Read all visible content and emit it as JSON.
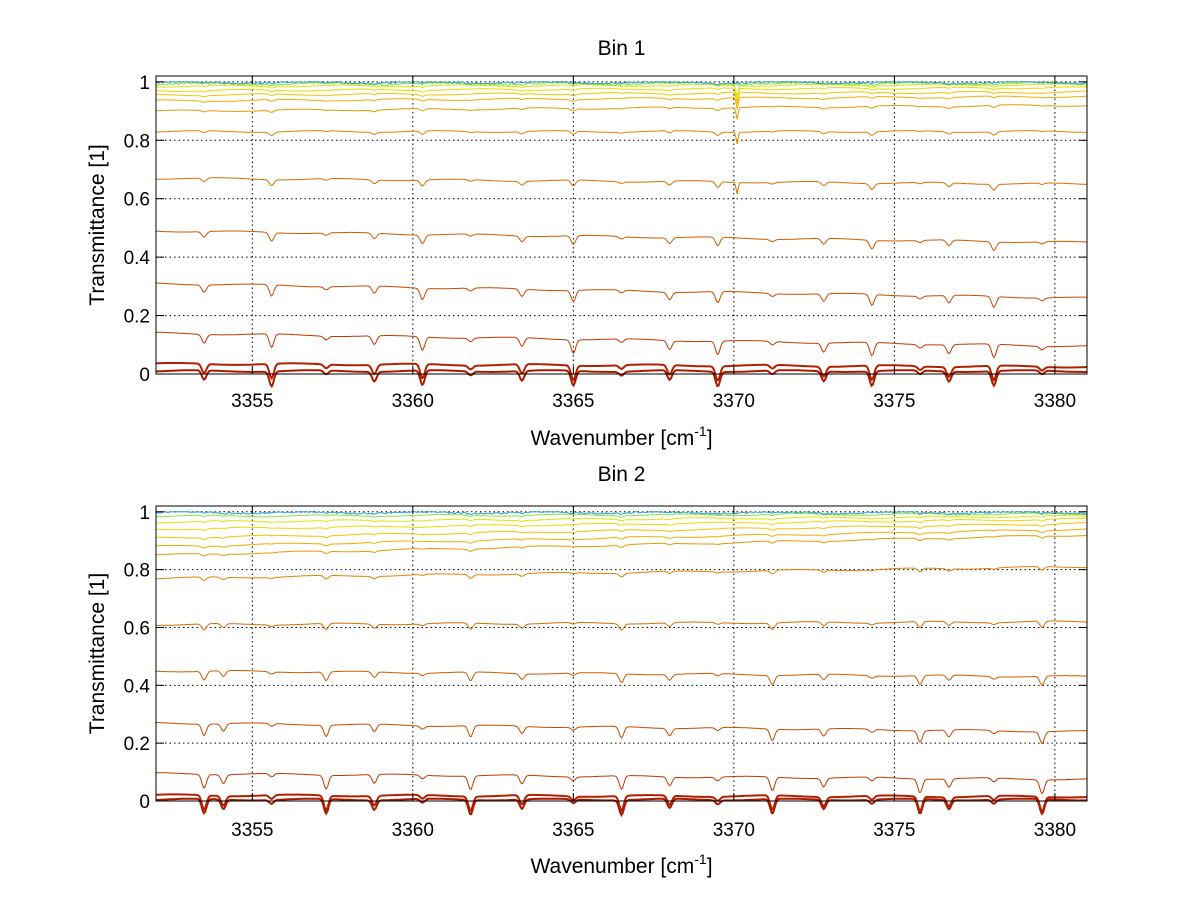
{
  "chart_data": [
    {
      "type": "line",
      "title": "Bin 1",
      "xlabel": "Wavenumber [cm",
      "xlabel_sup": "-1",
      "xlabel_end": "]",
      "ylabel": "Transmittance [1]",
      "xlim": [
        3352,
        3381
      ],
      "ylim": [
        0,
        1.02
      ],
      "xticks": [
        3355,
        3360,
        3365,
        3370,
        3375,
        3380
      ],
      "yticks": [
        0,
        0.2,
        0.4,
        0.6,
        0.8,
        1
      ],
      "ytick_labels": [
        "0",
        "0.2",
        "0.4",
        "0.6",
        "0.8",
        "1"
      ],
      "grid": true,
      "absorption_lines_x": [
        3353.5,
        3355.6,
        3357.3,
        3358.8,
        3360.3,
        3361.8,
        3363.4,
        3365.0,
        3366.5,
        3368.0,
        3369.5,
        3371.2,
        3372.8,
        3374.3,
        3375.8,
        3376.7,
        3378.1,
        3379.6
      ],
      "series": [
        {
          "start": 0.01,
          "end": 0.01,
          "color": "#aa1a00"
        },
        {
          "start": 0.035,
          "end": 0.025,
          "color": "#b02000"
        },
        {
          "start": 0.14,
          "end": 0.095,
          "color": "#c03800"
        },
        {
          "start": 0.31,
          "end": 0.26,
          "color": "#cc4800"
        },
        {
          "start": 0.49,
          "end": 0.45,
          "color": "#d05a00"
        },
        {
          "start": 0.67,
          "end": 0.65,
          "color": "#d86e00"
        },
        {
          "start": 0.83,
          "end": 0.83,
          "color": "#e08400"
        },
        {
          "start": 0.9,
          "end": 0.92,
          "color": "#e89a00"
        },
        {
          "start": 0.935,
          "end": 0.95,
          "color": "#f0ae00"
        },
        {
          "start": 0.955,
          "end": 0.965,
          "color": "#f5c200"
        },
        {
          "start": 0.97,
          "end": 0.98,
          "color": "#f0d800"
        },
        {
          "start": 0.985,
          "end": 0.99,
          "color": "#d8e800"
        },
        {
          "start": 0.993,
          "end": 0.995,
          "color": "#90e040"
        },
        {
          "start": 0.998,
          "end": 0.998,
          "color": "#2aa0d0"
        }
      ]
    },
    {
      "type": "line",
      "title": "Bin 2",
      "xlabel": "Wavenumber [cm",
      "xlabel_sup": "-1",
      "xlabel_end": "]",
      "ylabel": "Transmittance [1]",
      "xlim": [
        3352,
        3381
      ],
      "ylim": [
        0,
        1.02
      ],
      "xticks": [
        3355,
        3360,
        3365,
        3370,
        3375,
        3380
      ],
      "yticks": [
        0,
        0.2,
        0.4,
        0.6,
        0.8,
        1
      ],
      "ytick_labels": [
        "0",
        "0.2",
        "0.4",
        "0.6",
        "0.8",
        "1"
      ],
      "grid": true,
      "absorption_lines_x": [
        3353.5,
        3354.1,
        3355.6,
        3357.3,
        3358.8,
        3360.3,
        3361.8,
        3363.4,
        3365.0,
        3366.5,
        3368.0,
        3369.5,
        3371.2,
        3372.8,
        3374.3,
        3375.8,
        3376.7,
        3378.1,
        3379.6
      ],
      "series": [
        {
          "start": 0.005,
          "end": 0.005,
          "color": "#aa1a00"
        },
        {
          "start": 0.02,
          "end": 0.015,
          "color": "#b02000"
        },
        {
          "start": 0.095,
          "end": 0.075,
          "color": "#c03800"
        },
        {
          "start": 0.27,
          "end": 0.24,
          "color": "#cc4800"
        },
        {
          "start": 0.45,
          "end": 0.43,
          "color": "#d05a00"
        },
        {
          "start": 0.61,
          "end": 0.62,
          "color": "#d86e00"
        },
        {
          "start": 0.77,
          "end": 0.81,
          "color": "#e08400"
        },
        {
          "start": 0.85,
          "end": 0.92,
          "color": "#e89a00"
        },
        {
          "start": 0.88,
          "end": 0.94,
          "color": "#f0ae00"
        },
        {
          "start": 0.91,
          "end": 0.96,
          "color": "#f5c200"
        },
        {
          "start": 0.94,
          "end": 0.975,
          "color": "#f0d800"
        },
        {
          "start": 0.965,
          "end": 0.985,
          "color": "#d8e800"
        },
        {
          "start": 0.985,
          "end": 0.993,
          "color": "#90e040"
        },
        {
          "start": 0.997,
          "end": 0.997,
          "color": "#2aa0d0"
        }
      ]
    }
  ]
}
